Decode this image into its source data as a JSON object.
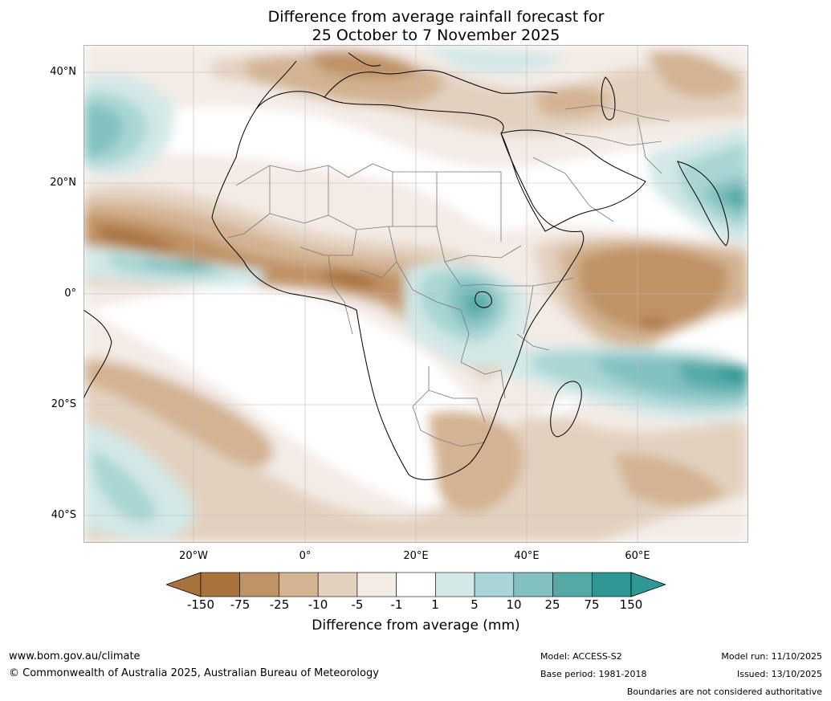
{
  "title": {
    "line1": "Difference from average rainfall forecast for",
    "line2": "25 October to 7 November 2025"
  },
  "map": {
    "lat_labels": [
      "40°N",
      "20°N",
      "0°",
      "20°S",
      "40°S"
    ],
    "lon_labels": [
      "20°W",
      "0°",
      "20°E",
      "40°E",
      "60°E"
    ],
    "colors": {
      "dry_extreme": "#a8723c",
      "dry_strong": "#c09366",
      "dry_moderate": "#d3b392",
      "dry_mild": "#e3d1c0",
      "dry_slight": "#f3ebe6",
      "neutral": "#ffffff",
      "wet_slight": "#d3e8e7",
      "wet_mild": "#a9d6d4",
      "wet_moderate": "#83c1c0",
      "wet_strong": "#55aaa8",
      "wet_extreme": "#2f9895",
      "coast": "#000000",
      "border": "#777777",
      "grid": "#bbbbbb"
    }
  },
  "colorbar": {
    "label": "Difference from average (mm)",
    "ticks": [
      "-150",
      "-75",
      "-25",
      "-10",
      "-5",
      "-1",
      "1",
      "5",
      "10",
      "25",
      "75",
      "150"
    ],
    "colors": [
      "#a8723c",
      "#c09366",
      "#d3b392",
      "#e3d1c0",
      "#f3ebe6",
      "#ffffff",
      "#d3e8e7",
      "#a9d6d4",
      "#83c1c0",
      "#55aaa8",
      "#2f9895"
    ]
  },
  "footer": {
    "website": "www.bom.gov.au/climate",
    "copyright": "© Commonwealth of Australia 2025, Australian Bureau of Meteorology",
    "model": "Model: ACCESS-S2",
    "base_period": "Base period: 1981-2018",
    "model_run": "Model run: 11/10/2025",
    "issued": "Issued: 13/10/2025",
    "disclaimer": "Boundaries are not considered authoritative"
  }
}
